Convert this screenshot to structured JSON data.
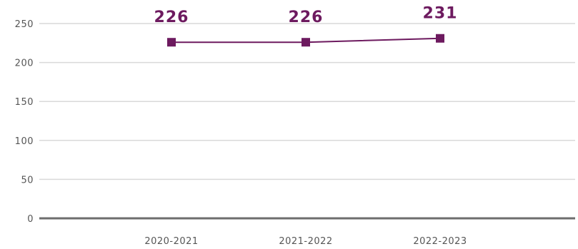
{
  "chart_data": {
    "type": "line",
    "categories": [
      "2020-2021",
      "2021-2022",
      "2022-2023"
    ],
    "series": [
      {
        "values": [
          226,
          226,
          231
        ],
        "color": "#6d1a5f",
        "marker": "square"
      }
    ],
    "data_labels": [
      "226",
      "226",
      "231"
    ],
    "y_ticks": [
      "0",
      "50",
      "100",
      "150",
      "200",
      "250"
    ],
    "ylim": [
      0,
      250
    ],
    "grid": true,
    "legend": "none",
    "title": "",
    "xlabel": "",
    "ylabel": ""
  }
}
